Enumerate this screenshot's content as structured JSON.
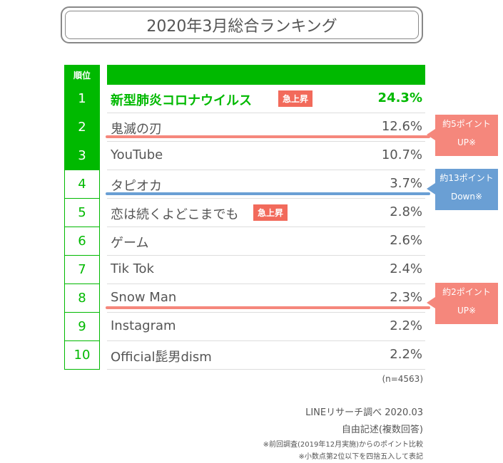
{
  "title": "2020年3月総合ランキング",
  "rank_header": "順位",
  "chart_data": {
    "type": "table",
    "columns": [
      "順位",
      "",
      ""
    ],
    "rows": [
      {
        "rank": "1",
        "name": "新型肺炎コロナウイルス",
        "pct": "24.3%",
        "value": 24.3,
        "badge": "急上昇"
      },
      {
        "rank": "2",
        "name": "鬼滅の刃",
        "pct": "12.6%",
        "value": 12.6,
        "badge": ""
      },
      {
        "rank": "3",
        "name": "YouTube",
        "pct": "10.7%",
        "value": 10.7,
        "badge": ""
      },
      {
        "rank": "4",
        "name": "タピオカ",
        "pct": "3.7%",
        "value": 3.7,
        "badge": ""
      },
      {
        "rank": "5",
        "name": "恋は続くよどこまでも",
        "pct": "2.8%",
        "value": 2.8,
        "badge": "急上昇"
      },
      {
        "rank": "6",
        "name": "ゲーム",
        "pct": "2.6%",
        "value": 2.6,
        "badge": ""
      },
      {
        "rank": "7",
        "name": "Tik Tok",
        "pct": "2.4%",
        "value": 2.4,
        "badge": ""
      },
      {
        "rank": "8",
        "name": "Snow Man",
        "pct": "2.3%",
        "value": 2.3,
        "badge": ""
      },
      {
        "rank": "9",
        "name": "Instagram",
        "pct": "2.2%",
        "value": 2.2,
        "badge": ""
      },
      {
        "rank": "10",
        "name": "Official髭男dism",
        "pct": "2.2%",
        "value": 2.2,
        "badge": ""
      }
    ],
    "callouts": [
      {
        "line1": "約5ポイント",
        "line2": "UP※",
        "color": "#f5877c"
      },
      {
        "line1": "約13ポイント",
        "line2": "Down※",
        "color": "#6a9fd4"
      },
      {
        "line1": "約2ポイント",
        "line2": "UP※",
        "color": "#f5877c"
      }
    ]
  },
  "sample_size": "(n=4563)",
  "notes": {
    "source": "LINEリサーチ調べ 2020.03",
    "method": "自由記述(複数回答)",
    "footnote1": "※前回調査(2019年12月実施)からのポイント比較",
    "footnote2": "※小数点第2位以下を四捨五入して表記"
  },
  "colors": {
    "accent": "#00b900",
    "up": "#f5877c",
    "down": "#6a9fd4",
    "badge": "#f26a5b"
  }
}
